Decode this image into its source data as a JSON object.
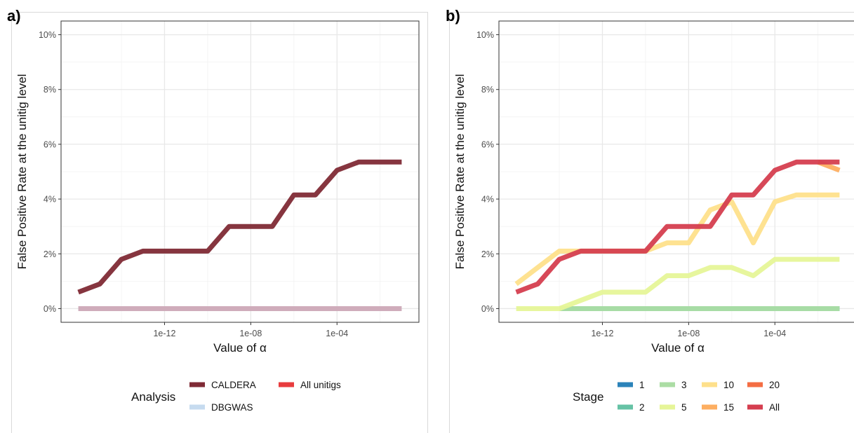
{
  "chart_data": [
    {
      "panel": "a)",
      "type": "line",
      "xlabel": "Value of α",
      "ylabel": "False Positive Rate at the unitig level",
      "x_scale": "log10",
      "x_ticks": [
        "1e-12",
        "1e-08",
        "1e-04"
      ],
      "y_ticks": [
        "0%",
        "2%",
        "4%",
        "6%",
        "8%",
        "10%"
      ],
      "xlim_log10": [
        -16.8,
        -0.2
      ],
      "ylim": [
        -0.5,
        10.5
      ],
      "grid": true,
      "x": [
        "1e-16",
        "1e-15",
        "1e-14",
        "1e-13",
        "1e-12",
        "1e-11",
        "1e-10",
        "1e-09",
        "1e-08",
        "1e-07",
        "1e-06",
        "1e-05",
        "1e-04",
        "1e-03",
        "1e-02",
        "1e-01"
      ],
      "series": [
        {
          "name": "DBGWAS",
          "color": "#c6dbef",
          "values": [
            0,
            0,
            0,
            0,
            0,
            0,
            0,
            0,
            0,
            0,
            0,
            0,
            0,
            0,
            0,
            0
          ]
        },
        {
          "name": "All unitigs",
          "color": "#e41a1c",
          "values": [
            0,
            0,
            0,
            0,
            0,
            0,
            0,
            0,
            0,
            0,
            0,
            0,
            0,
            0,
            0,
            0
          ]
        },
        {
          "name": "CALDERA",
          "color": "#7f2a35",
          "values": [
            0.6,
            0.9,
            1.8,
            2.1,
            2.1,
            2.1,
            2.1,
            3.0,
            3.0,
            3.0,
            4.15,
            4.15,
            5.05,
            5.35,
            5.35,
            5.35
          ]
        }
      ],
      "legend": {
        "title": "Analysis",
        "position": "bottom",
        "entries": [
          {
            "label": "CALDERA",
            "color": "#7f2a35"
          },
          {
            "label": "DBGWAS",
            "color": "#c6dbef"
          },
          {
            "label": "All unitigs",
            "color": "#e41a1c"
          }
        ]
      }
    },
    {
      "panel": "b)",
      "type": "line",
      "xlabel": "Value of α",
      "ylabel": "False Positive Rate at the unitig level",
      "x_scale": "log10",
      "x_ticks": [
        "1e-12",
        "1e-08",
        "1e-04"
      ],
      "y_ticks": [
        "0%",
        "2%",
        "4%",
        "6%",
        "8%",
        "10%"
      ],
      "xlim_log10": [
        -16.8,
        -0.2
      ],
      "ylim": [
        -0.5,
        10.5
      ],
      "grid": true,
      "x": [
        "1e-16",
        "1e-15",
        "1e-14",
        "1e-13",
        "1e-12",
        "1e-11",
        "1e-10",
        "1e-09",
        "1e-08",
        "1e-07",
        "1e-06",
        "1e-05",
        "1e-04",
        "1e-03",
        "1e-02",
        "1e-01"
      ],
      "series": [
        {
          "name": "1",
          "color": "#2b83ba",
          "values": [
            null,
            null,
            0,
            0,
            0,
            0,
            0,
            0,
            0,
            0,
            0,
            0,
            0,
            0,
            0,
            0
          ]
        },
        {
          "name": "2",
          "color": "#66c2a5",
          "values": [
            null,
            null,
            0,
            0,
            0,
            0,
            0,
            0,
            0,
            0,
            0,
            0,
            0,
            0,
            0,
            0
          ]
        },
        {
          "name": "3",
          "color": "#abdda4",
          "values": [
            null,
            null,
            0,
            0,
            0,
            0,
            0,
            0,
            0,
            0,
            0,
            0,
            0,
            0,
            0,
            0
          ]
        },
        {
          "name": "5",
          "color": "#e6f598",
          "values": [
            0,
            0,
            0,
            0.3,
            0.6,
            0.6,
            0.6,
            1.2,
            1.2,
            1.5,
            1.5,
            1.2,
            1.8,
            1.8,
            1.8,
            1.8
          ]
        },
        {
          "name": "10",
          "color": "#fee08b",
          "values": [
            0.9,
            1.5,
            2.1,
            2.1,
            2.1,
            2.1,
            2.1,
            2.4,
            2.4,
            3.6,
            3.9,
            2.4,
            3.9,
            4.15,
            4.15,
            4.15
          ]
        },
        {
          "name": "15",
          "color": "#fdae61",
          "values": [
            null,
            null,
            null,
            null,
            null,
            null,
            null,
            null,
            null,
            null,
            null,
            null,
            null,
            null,
            5.35,
            5.05
          ]
        },
        {
          "name": "20",
          "color": "#f46d43",
          "values": [
            null,
            null,
            null,
            null,
            null,
            null,
            null,
            null,
            null,
            null,
            null,
            null,
            null,
            null,
            null,
            null
          ]
        },
        {
          "name": "All",
          "color": "#d53e4f",
          "values": [
            0.6,
            0.9,
            1.8,
            2.1,
            2.1,
            2.1,
            2.1,
            3.0,
            3.0,
            3.0,
            4.15,
            4.15,
            5.05,
            5.35,
            5.35,
            5.35
          ]
        }
      ],
      "legend": {
        "title": "Stage",
        "position": "bottom",
        "entries": [
          {
            "label": "1",
            "color": "#2b83ba"
          },
          {
            "label": "2",
            "color": "#66c2a5"
          },
          {
            "label": "3",
            "color": "#abdda4"
          },
          {
            "label": "5",
            "color": "#e6f598"
          },
          {
            "label": "10",
            "color": "#fee08b"
          },
          {
            "label": "15",
            "color": "#fdae61"
          },
          {
            "label": "20",
            "color": "#f46d43"
          },
          {
            "label": "All",
            "color": "#d53e4f"
          }
        ]
      }
    }
  ]
}
